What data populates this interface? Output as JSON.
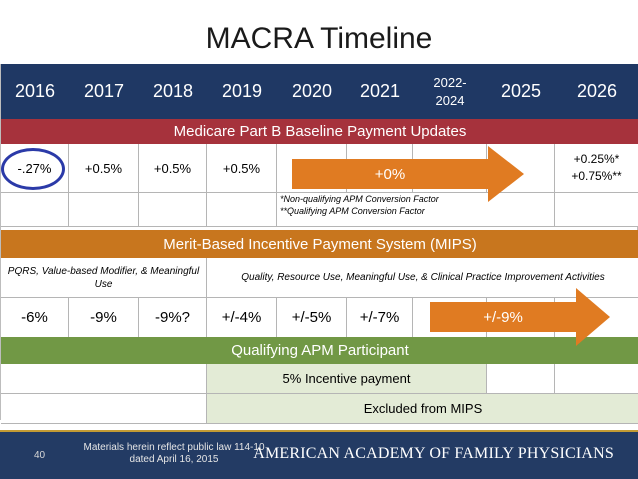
{
  "title": "MACRA Timeline",
  "years": [
    "2016",
    "2017",
    "2018",
    "2019",
    "2020",
    "2021",
    "2022-\n2024",
    "2025",
    "2026"
  ],
  "sections": {
    "medicare_header": "Medicare Part B Baseline Payment Updates",
    "mips_header": "Merit-Based Incentive Payment System (MIPS)",
    "apm_header": "Qualifying APM Participant"
  },
  "payment_updates": {
    "y2016": "-.27%",
    "y2017": "+0.5%",
    "y2018": "+0.5%",
    "y2019": "+0.5%",
    "arrow_label": "+0%",
    "y2026_line1": "+0.25%*",
    "y2026_line2": "+0.75%**"
  },
  "footnotes": {
    "line1": "*Non-qualifying APM Conversion Factor",
    "line2": "**Qualifying APM Conversion Factor"
  },
  "mips_labels": {
    "left": "PQRS, Value-based Modifier, & Meaningful Use",
    "right": "Quality, Resource Use, Meaningful Use, & Clinical Practice Improvement Activities"
  },
  "mips_values": {
    "y2016": "-6%",
    "y2017": "-9%",
    "y2018": "-9%?",
    "y2019": "+/-4%",
    "y2020": "+/-5%",
    "y2021": "+/-7%",
    "arrow_label": "+/-9%"
  },
  "apm": {
    "incentive": "5% Incentive payment",
    "excluded": "Excluded from MIPS"
  },
  "footer": {
    "page_number": "40",
    "legal": "Materials herein reflect public law 114-10 dated April 16, 2015",
    "organization": "AMERICAN ACADEMY OF FAMILY PHYSICIANS"
  },
  "colors": {
    "year_bar": "#1f3864",
    "medicare_band": "#a6323c",
    "mips_band": "#c8761e",
    "apm_band": "#719845",
    "arrow": "#e07b22",
    "highlight_circle": "#2b3aa8",
    "footer": "#233b64"
  }
}
